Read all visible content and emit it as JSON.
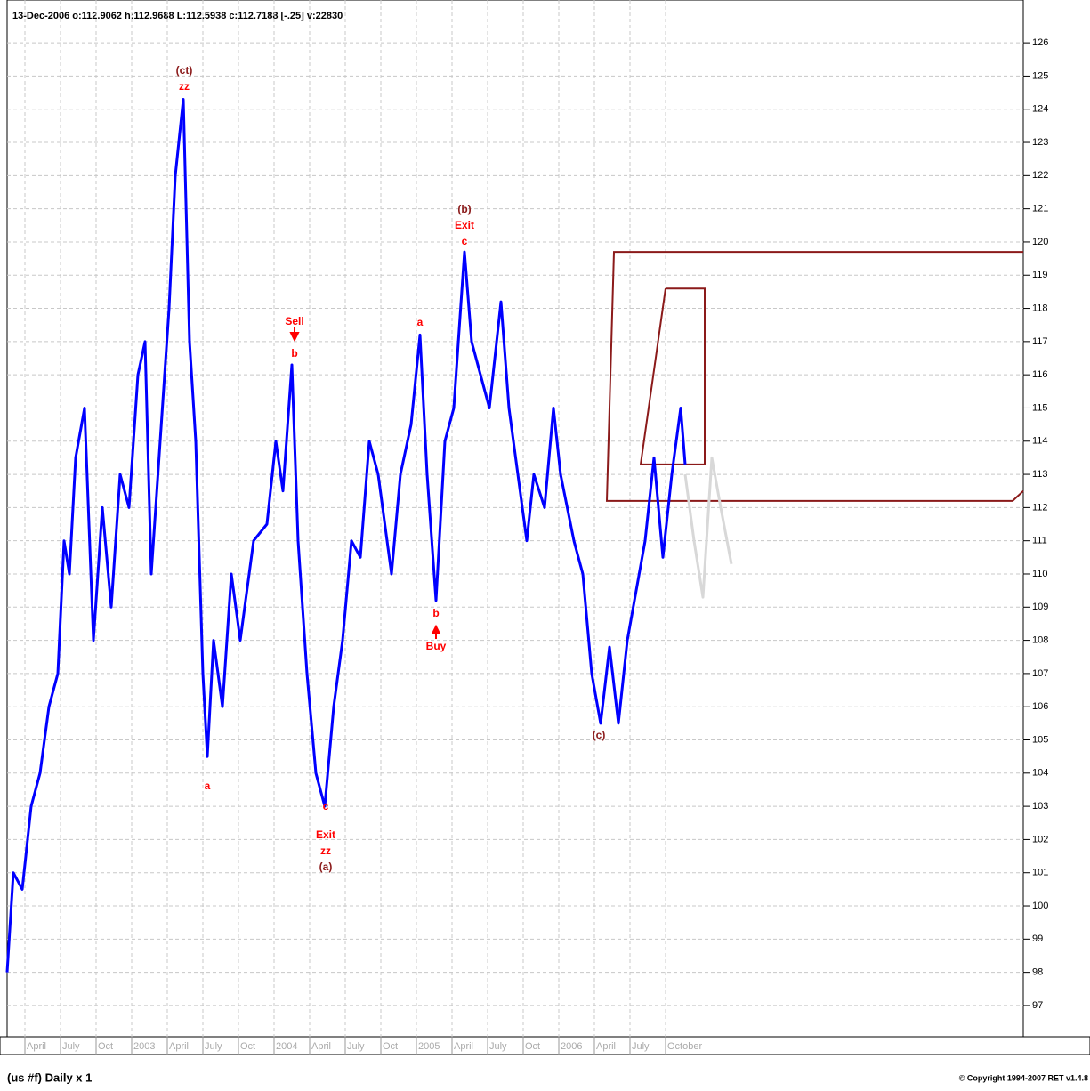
{
  "chart_data": {
    "type": "line",
    "header": "13-Dec-2006  o:112.9062 h:112.9688 L:112.5938 c:112.7188 [-.25] v:22830",
    "footer_left": "(us #f)  Daily x 1",
    "footer_right": "© Copyright 1994-2007 RET v1.4.8",
    "ylim": [
      96.06,
      127.29
    ],
    "yticks": [
      97,
      98,
      99,
      100,
      101,
      102,
      103,
      104,
      105,
      106,
      107,
      108,
      109,
      110,
      111,
      112,
      113,
      114,
      115,
      116,
      117,
      118,
      119,
      120,
      121,
      122,
      123,
      124,
      125,
      126
    ],
    "xlim": [
      0.5,
      29.05
    ],
    "xticks": [
      {
        "value": 1,
        "label": "April"
      },
      {
        "value": 2,
        "label": "July"
      },
      {
        "value": 3,
        "label": "Oct"
      },
      {
        "value": 4,
        "label": "2003"
      },
      {
        "value": 5,
        "label": "April"
      },
      {
        "value": 6,
        "label": "July"
      },
      {
        "value": 7,
        "label": "Oct"
      },
      {
        "value": 8,
        "label": "2004"
      },
      {
        "value": 9,
        "label": "April"
      },
      {
        "value": 10,
        "label": "July"
      },
      {
        "value": 11,
        "label": "Oct"
      },
      {
        "value": 12,
        "label": "2005"
      },
      {
        "value": 13,
        "label": "April"
      },
      {
        "value": 14,
        "label": "July"
      },
      {
        "value": 15,
        "label": "Oct"
      },
      {
        "value": 16,
        "label": "2006"
      },
      {
        "value": 17,
        "label": "April"
      },
      {
        "value": 18,
        "label": "July"
      },
      {
        "value": 19,
        "label": "October"
      }
    ],
    "grid": true,
    "series": [
      {
        "color": "#0000ff",
        "x": [
          0.5,
          0.675,
          0.925,
          1.175,
          1.425,
          1.675,
          1.925,
          2.1,
          2.25,
          2.425,
          2.675,
          2.925,
          3.175,
          3.425,
          3.675,
          3.925,
          4.175,
          4.375,
          4.55,
          4.8,
          5.05,
          5.225,
          5.45,
          5.625,
          5.8,
          6.0,
          6.125,
          6.3,
          6.55,
          6.8,
          7.05,
          7.425,
          7.8,
          8.05,
          8.25,
          8.5,
          8.675,
          8.925,
          9.175,
          9.425,
          9.675,
          9.925,
          10.175,
          10.425,
          10.675,
          10.925,
          11.3,
          11.55,
          11.85,
          12.1,
          12.3,
          12.55,
          12.8,
          13.05,
          13.35,
          13.55,
          13.8,
          14.05,
          14.375,
          14.6,
          14.85,
          15.1,
          15.3,
          15.6,
          15.85,
          16.05,
          16.425,
          16.675,
          16.925,
          17.175,
          17.425,
          17.675,
          17.925,
          18.175,
          18.425,
          18.675,
          18.925,
          19.175,
          19.425,
          19.55
        ],
        "values": [
          98,
          101,
          100.5,
          103,
          104,
          106,
          107,
          111,
          110,
          113.5,
          115,
          108,
          112,
          109,
          113,
          112,
          116,
          117,
          110,
          114,
          118,
          122,
          124.3,
          117,
          114,
          107,
          104.5,
          108,
          106,
          110,
          108,
          111,
          111.5,
          114,
          112.5,
          116.3,
          111,
          107,
          104,
          103,
          106,
          108,
          111,
          110.5,
          114,
          113,
          110,
          113,
          114.5,
          117.2,
          113,
          109.2,
          114,
          115,
          119.7,
          117,
          116,
          115,
          118.2,
          115,
          113,
          111,
          113,
          112,
          115,
          113,
          111,
          110,
          107,
          105.5,
          107.8,
          105.5,
          108,
          109.5,
          111,
          113.5,
          110.5,
          113,
          115,
          113.3
        ]
      },
      {
        "color": "#d8d8d8",
        "x": [
          19.55,
          19.8,
          20.05,
          20.3,
          20.55,
          20.85
        ],
        "values": [
          113,
          111,
          109.3,
          113.5,
          112,
          110.3
        ]
      }
    ],
    "shapes": [
      {
        "color": "#8b1a1a",
        "x": [
          29.05,
          17.55,
          17.35,
          28.75,
          29.05
        ],
        "y": [
          119.7,
          119.7,
          112.2,
          112.2,
          112.5
        ]
      },
      {
        "color": "#8b1a1a",
        "x": [
          19.0,
          20.1,
          20.1,
          18.3,
          19.0
        ],
        "y": [
          118.6,
          118.6,
          113.3,
          113.3,
          118.6
        ]
      }
    ],
    "annotations": [
      {
        "text": "(ct)",
        "color": "#8b1a1a"
      },
      {
        "text": "zz",
        "color": "#ff0000"
      },
      {
        "text": "a",
        "color": "#ff0000"
      },
      {
        "text": "Sell",
        "color": "#ff0000"
      },
      {
        "text": "b",
        "color": "#ff0000"
      },
      {
        "text": "c",
        "color": "#ff0000"
      },
      {
        "text": "Exit",
        "color": "#ff0000"
      },
      {
        "text": "zz",
        "color": "#ff0000"
      },
      {
        "text": "(a)",
        "color": "#8b1a1a"
      },
      {
        "text": "a",
        "color": "#ff0000"
      },
      {
        "text": "b",
        "color": "#ff0000"
      },
      {
        "text": "Buy",
        "color": "#ff0000"
      },
      {
        "text": "(b)",
        "color": "#8b1a1a"
      },
      {
        "text": "Exit",
        "color": "#ff0000"
      },
      {
        "text": "c",
        "color": "#ff0000"
      },
      {
        "text": "(c)",
        "color": "#8b1a1a"
      }
    ]
  }
}
